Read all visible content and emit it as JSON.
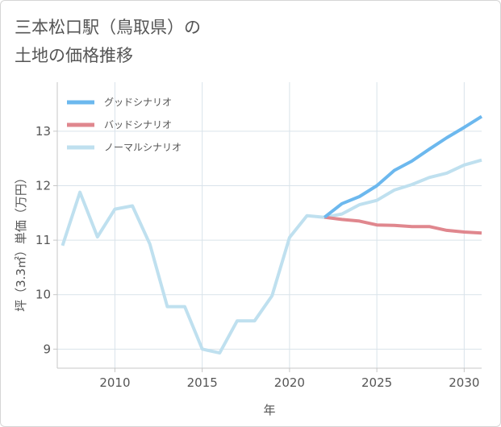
{
  "chart_data": {
    "type": "line",
    "title_lines": [
      "三本松口駅（鳥取県）の",
      "土地の価格推移"
    ],
    "xlabel": "年",
    "ylabel": "坪（3.3㎡）単価（万円）",
    "xlim": [
      2006.7,
      2031.0
    ],
    "ylim": [
      8.65,
      13.9
    ],
    "xticks": [
      2010,
      2015,
      2020,
      2025,
      2030
    ],
    "yticks": [
      9,
      10,
      11,
      12,
      13
    ],
    "grid": true,
    "legend_position": "top-left",
    "series": [
      {
        "name": "グッドシナリオ",
        "color": "#6cb8ee",
        "x": [
          2022,
          2023,
          2024,
          2025,
          2026,
          2027,
          2028,
          2029,
          2030,
          2031
        ],
        "y": [
          11.42,
          11.67,
          11.8,
          12.0,
          12.28,
          12.45,
          12.67,
          12.88,
          13.07,
          13.27
        ]
      },
      {
        "name": "バッドシナリオ",
        "color": "#e0878e",
        "x": [
          2022,
          2023,
          2024,
          2025,
          2026,
          2027,
          2028,
          2029,
          2030,
          2031
        ],
        "y": [
          11.42,
          11.38,
          11.35,
          11.28,
          11.27,
          11.25,
          11.25,
          11.18,
          11.15,
          11.13
        ]
      },
      {
        "name": "ノーマルシナリオ",
        "color": "#bfe0ef",
        "x": [
          2007,
          2008,
          2009,
          2010,
          2011,
          2012,
          2013,
          2014,
          2015,
          2016,
          2017,
          2018,
          2019,
          2020,
          2021,
          2022,
          2023,
          2024,
          2025,
          2026,
          2027,
          2028,
          2029,
          2030,
          2031
        ],
        "y": [
          10.9,
          11.88,
          11.06,
          11.57,
          11.63,
          10.93,
          9.78,
          9.78,
          9.0,
          8.93,
          9.52,
          9.52,
          9.98,
          11.05,
          11.45,
          11.42,
          11.48,
          11.65,
          11.73,
          11.92,
          12.02,
          12.15,
          12.23,
          12.38,
          12.47
        ]
      }
    ]
  }
}
